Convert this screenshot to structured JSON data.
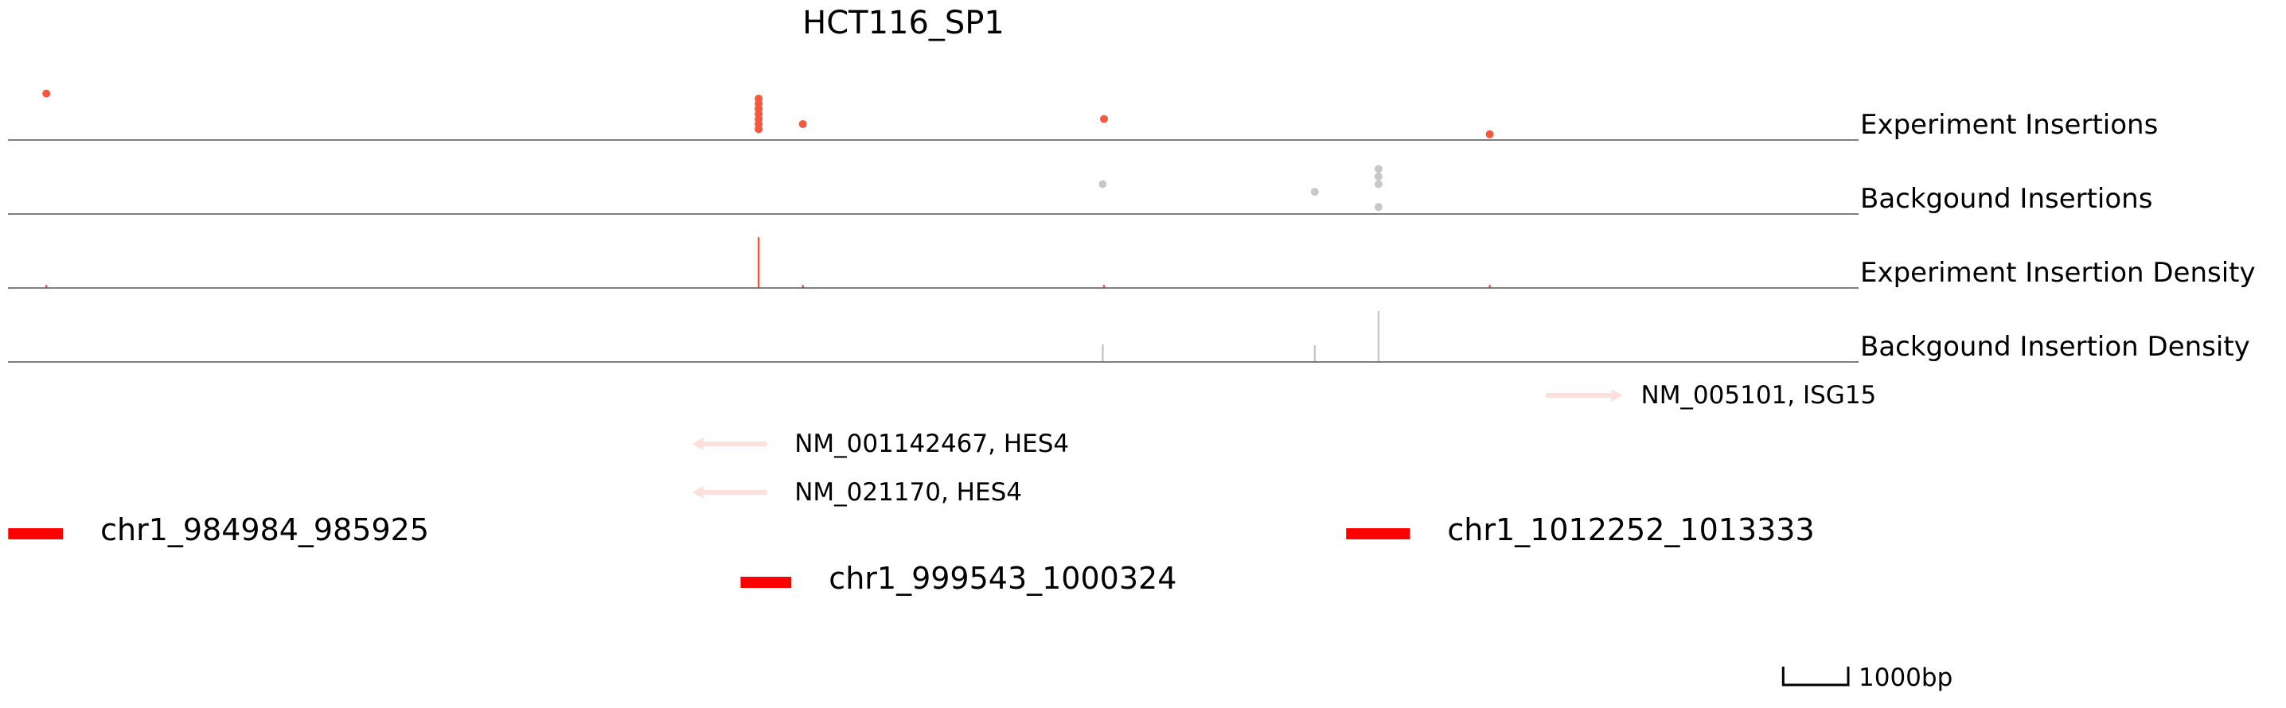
{
  "chart_data": {
    "type": "scatter",
    "title": "HCT116_SP1",
    "xlim": [
      984880,
      1013330
    ],
    "colors": {
      "experiment": "#f4593f",
      "background": "#c8c8c8",
      "peak": "#ff0000",
      "gene": "#fde0dc",
      "axis": "#555555"
    },
    "tracks": [
      {
        "key": "exp_ins",
        "label": "Experiment Insertions",
        "kind": "points",
        "color_key": "experiment",
        "points": [
          {
            "x": 985470,
            "y": 8
          },
          {
            "x": 996420,
            "y": 7
          },
          {
            "x": 996420,
            "y": 6
          },
          {
            "x": 996420,
            "y": 5
          },
          {
            "x": 996420,
            "y": 4
          },
          {
            "x": 996420,
            "y": 3
          },
          {
            "x": 996420,
            "y": 2
          },
          {
            "x": 996420,
            "y": 1
          },
          {
            "x": 997100,
            "y": 2
          },
          {
            "x": 1001730,
            "y": 3
          },
          {
            "x": 1007660,
            "y": 0
          }
        ],
        "ylim": [
          -0.5,
          9.5
        ]
      },
      {
        "key": "bg_ins",
        "label": "Backgound Insertions",
        "kind": "points",
        "color_key": "background",
        "points": [
          {
            "x": 1001710,
            "y": 3
          },
          {
            "x": 1004970,
            "y": 2
          },
          {
            "x": 1005950,
            "y": 5
          },
          {
            "x": 1005950,
            "y": 4
          },
          {
            "x": 1005950,
            "y": 3
          },
          {
            "x": 1005950,
            "y": 0
          }
        ],
        "ylim": [
          -0.5,
          6.5
        ]
      },
      {
        "key": "exp_density",
        "label": "Experiment Insertion Density",
        "kind": "bars",
        "color_key": "experiment",
        "bars": [
          {
            "x": 985470,
            "h": 0.06
          },
          {
            "x": 996420,
            "h": 1.0
          },
          {
            "x": 997100,
            "h": 0.06
          },
          {
            "x": 1001730,
            "h": 0.06
          },
          {
            "x": 1007660,
            "h": 0.06
          }
        ],
        "ymax": 1.05
      },
      {
        "key": "bg_density",
        "label": "Backgound Insertion Density",
        "kind": "bars",
        "color_key": "background",
        "bars": [
          {
            "x": 1001710,
            "h": 0.35
          },
          {
            "x": 1004970,
            "h": 0.33
          },
          {
            "x": 1005950,
            "h": 1.0
          }
        ],
        "ymax": 1.05
      }
    ],
    "genes": [
      {
        "name": "NM_005101, ISG15",
        "start": 1008550,
        "end": 1009530,
        "strand": "+"
      },
      {
        "name": "NM_001142467, HES4",
        "start": 995570,
        "end": 996520,
        "strand": "-"
      },
      {
        "name": "NM_021170, HES4",
        "start": 995570,
        "end": 996520,
        "strand": "-"
      }
    ],
    "peaks": [
      {
        "name": "chr1_984984_985925",
        "start": 984884,
        "end": 985725
      },
      {
        "name": "chr1_999543_1000324",
        "start": 996143,
        "end": 996924
      },
      {
        "name": "chr1_1012252_1013333",
        "start": 1005452,
        "end": 1006433
      }
    ],
    "scale_bar": {
      "length_bp": 1000,
      "label": "1000bp"
    }
  }
}
